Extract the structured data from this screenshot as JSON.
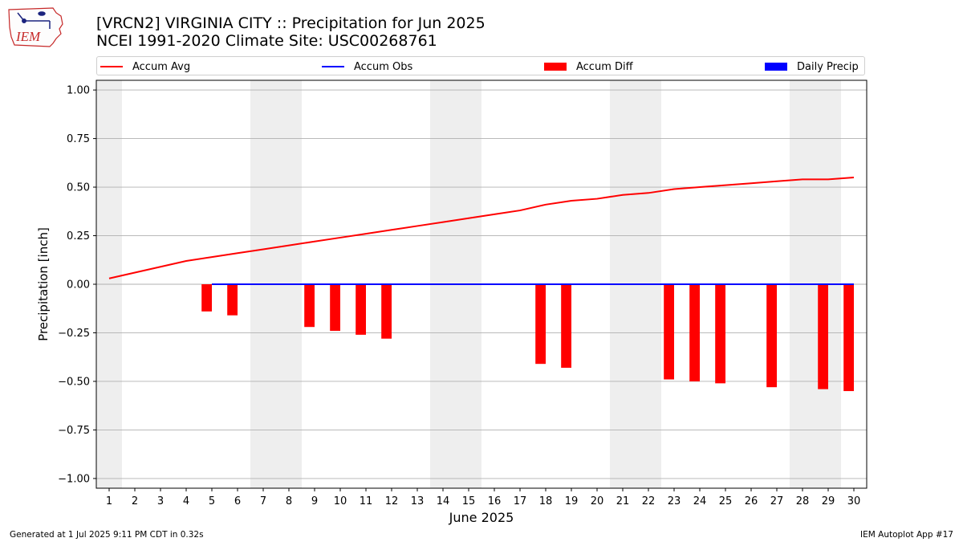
{
  "header": {
    "logo_text": "IEM",
    "title_line1": "[VRCN2] VIRGINIA CITY :: Precipitation for Jun 2025",
    "title_line2": "NCEI 1991-2020 Climate Site: USC00268761"
  },
  "legend": [
    {
      "label": "Accum Avg",
      "kind": "line",
      "color": "#ff0000"
    },
    {
      "label": "Accum Obs",
      "kind": "line",
      "color": "#0000ff"
    },
    {
      "label": "Accum Diff",
      "kind": "box",
      "color": "#ff0000"
    },
    {
      "label": "Daily Precip",
      "kind": "box",
      "color": "#0000ff"
    }
  ],
  "footer": {
    "left": "Generated at 1 Jul 2025 9:11 PM CDT in 0.32s",
    "right": "IEM Autoplot App #17"
  },
  "chart_data": {
    "type": "bar",
    "xlabel": "June 2025",
    "ylabel": "Precipitation [inch]",
    "ylim": [
      -1.05,
      1.05
    ],
    "yticks": [
      1.0,
      0.75,
      0.5,
      0.25,
      0.0,
      -0.25,
      -0.5,
      -0.75,
      -1.0
    ],
    "ytick_labels": [
      "1.00",
      "0.75",
      "0.50",
      "0.25",
      "0.00",
      "−0.25",
      "−0.50",
      "−0.75",
      "−1.00"
    ],
    "grid": "horizontal",
    "weekend_shading_days": [
      1,
      7,
      8,
      14,
      15,
      21,
      22,
      28,
      29
    ],
    "days": [
      1,
      2,
      3,
      4,
      5,
      6,
      7,
      8,
      9,
      10,
      11,
      12,
      13,
      14,
      15,
      16,
      17,
      18,
      19,
      20,
      21,
      22,
      23,
      24,
      25,
      26,
      27,
      28,
      29,
      30
    ],
    "series": [
      {
        "name": "Accum Avg",
        "type": "line",
        "color": "#ff0000",
        "values": [
          0.03,
          0.06,
          0.09,
          0.12,
          0.14,
          0.16,
          0.18,
          0.2,
          0.22,
          0.24,
          0.26,
          0.28,
          0.3,
          0.32,
          0.34,
          0.36,
          0.38,
          0.41,
          0.43,
          0.44,
          0.46,
          0.47,
          0.49,
          0.5,
          0.51,
          0.52,
          0.53,
          0.54,
          0.54,
          0.55
        ]
      },
      {
        "name": "Accum Obs",
        "type": "step",
        "color": "#0000ff",
        "start_day": 5,
        "values": [
          0.0,
          0.0,
          0.0,
          0.0,
          0.0,
          0.0,
          0.0,
          0.0,
          0.0,
          0.0,
          0.0,
          0.0,
          0.0,
          0.0,
          0.0,
          0.0,
          0.0,
          0.0,
          0.0,
          0.0,
          0.0,
          0.0,
          0.0,
          0.0,
          0.0,
          0.0
        ]
      },
      {
        "name": "Accum Diff",
        "type": "bar",
        "color": "#ff0000",
        "days": [
          5,
          6,
          9,
          10,
          11,
          12,
          18,
          19,
          23,
          24,
          25,
          27,
          29,
          30
        ],
        "values": [
          -0.14,
          -0.16,
          -0.22,
          -0.24,
          -0.26,
          -0.28,
          -0.41,
          -0.43,
          -0.49,
          -0.5,
          -0.51,
          -0.53,
          -0.54,
          -0.55
        ]
      },
      {
        "name": "Daily Precip",
        "type": "bar",
        "color": "#0000ff",
        "days": [],
        "values": []
      }
    ]
  }
}
